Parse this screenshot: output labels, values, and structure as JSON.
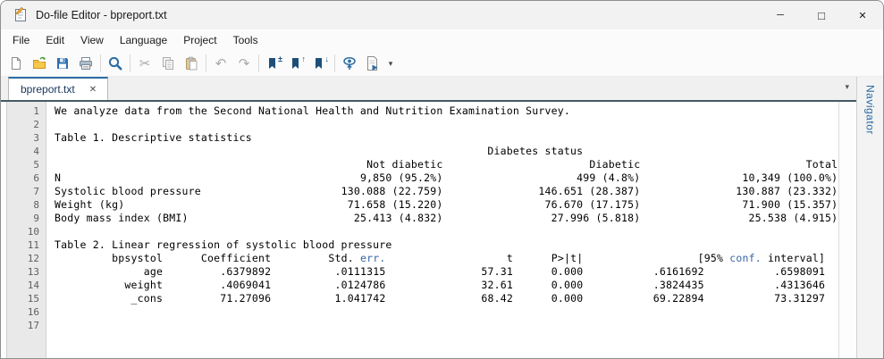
{
  "window": {
    "title": "Do-file Editor - bpreport.txt",
    "controls": {
      "minimize": "─",
      "maximize": "□",
      "close": "✕"
    }
  },
  "menubar": {
    "items": [
      "File",
      "Edit",
      "View",
      "Language",
      "Project",
      "Tools"
    ]
  },
  "toolbar": {
    "buttons": [
      "new-do-file",
      "open",
      "save",
      "print",
      "find",
      "cut",
      "copy",
      "paste",
      "undo",
      "redo",
      "toggle-bookmark",
      "previous-bookmark",
      "next-bookmark",
      "preview",
      "execute-do",
      "more-options"
    ],
    "glyphs": {
      "cut": "✂",
      "undo": "↶",
      "redo": "↷",
      "bookmark_plusminus": "±",
      "bookmark_up": "↑",
      "bookmark_down": "↓",
      "dropdown": "▾"
    }
  },
  "tabbar": {
    "tabs": [
      {
        "label": "bpreport.txt",
        "close": "✕",
        "active": true
      }
    ],
    "overflow_dropdown": "▾"
  },
  "navigator": {
    "label": "Navigator"
  },
  "editor": {
    "colors": {
      "keyword": "#3465a4",
      "text": "#000000"
    },
    "lines": [
      {
        "n": 1,
        "parts": [
          [
            0,
            "We analyze data from the Second National Health and Nutrition Examination Survey."
          ]
        ]
      },
      {
        "n": 2,
        "parts": []
      },
      {
        "n": 3,
        "parts": [
          [
            0,
            "Table 1. Descriptive statistics"
          ]
        ]
      },
      {
        "n": 4,
        "parts": [
          [
            68,
            "Diabetes status"
          ]
        ]
      },
      {
        "n": 5,
        "parts": [
          [
            49,
            "Not diabetic"
          ],
          [
            84,
            "Diabetic"
          ],
          [
            118,
            "Total"
          ]
        ]
      },
      {
        "n": 6,
        "parts": [
          [
            0,
            "N"
          ],
          [
            48,
            "9,850 (95.2%)"
          ],
          [
            82,
            "499 (4.8%)"
          ],
          [
            108,
            "10,349 (100.0%)"
          ]
        ]
      },
      {
        "n": 7,
        "parts": [
          [
            0,
            "Systolic blood pressure"
          ],
          [
            45,
            "130.088 (22.759)"
          ],
          [
            76,
            "146.651 (28.387)"
          ],
          [
            107,
            "130.887 (23.332)"
          ]
        ]
      },
      {
        "n": 8,
        "parts": [
          [
            0,
            "Weight (kg)"
          ],
          [
            46,
            "71.658 (15.220)"
          ],
          [
            77,
            "76.670 (17.175)"
          ],
          [
            108,
            "71.900 (15.357)"
          ]
        ]
      },
      {
        "n": 9,
        "parts": [
          [
            0,
            "Body mass index (BMI)"
          ],
          [
            47,
            "25.413 (4.832)"
          ],
          [
            78,
            "27.996 (5.818)"
          ],
          [
            109,
            "25.538 (4.915)"
          ]
        ]
      },
      {
        "n": 10,
        "parts": []
      },
      {
        "n": 11,
        "parts": [
          [
            0,
            "Table 2. Linear regression of systolic blood pressure"
          ]
        ]
      },
      {
        "n": 12,
        "parts": [
          [
            9,
            "bpsystol"
          ],
          [
            23,
            "Coefficient"
          ],
          [
            43,
            "Std. "
          ],
          [
            48,
            "err.",
            "kw"
          ],
          [
            71,
            "t"
          ],
          [
            78,
            "P>|t|"
          ],
          [
            101,
            "[95% "
          ],
          [
            106,
            "conf.",
            "kw"
          ],
          [
            112,
            "interval]"
          ]
        ]
      },
      {
        "n": 13,
        "parts": [
          [
            14,
            "age"
          ],
          [
            26,
            ".6379892"
          ],
          [
            44,
            ".0111315"
          ],
          [
            67,
            "57.31"
          ],
          [
            78,
            "0.000"
          ],
          [
            94,
            ".6161692"
          ],
          [
            113,
            ".6598091"
          ]
        ]
      },
      {
        "n": 14,
        "parts": [
          [
            11,
            "weight"
          ],
          [
            26,
            ".4069041"
          ],
          [
            44,
            ".0124786"
          ],
          [
            67,
            "32.61"
          ],
          [
            78,
            "0.000"
          ],
          [
            94,
            ".3824435"
          ],
          [
            113,
            ".4313646"
          ]
        ]
      },
      {
        "n": 15,
        "parts": [
          [
            12,
            "_cons"
          ],
          [
            26,
            "71.27096"
          ],
          [
            44,
            "1.041742"
          ],
          [
            67,
            "68.42"
          ],
          [
            78,
            "0.000"
          ],
          [
            94,
            "69.22894"
          ],
          [
            113,
            "73.31297"
          ]
        ]
      },
      {
        "n": 16,
        "parts": []
      },
      {
        "n": 17,
        "parts": []
      }
    ]
  }
}
